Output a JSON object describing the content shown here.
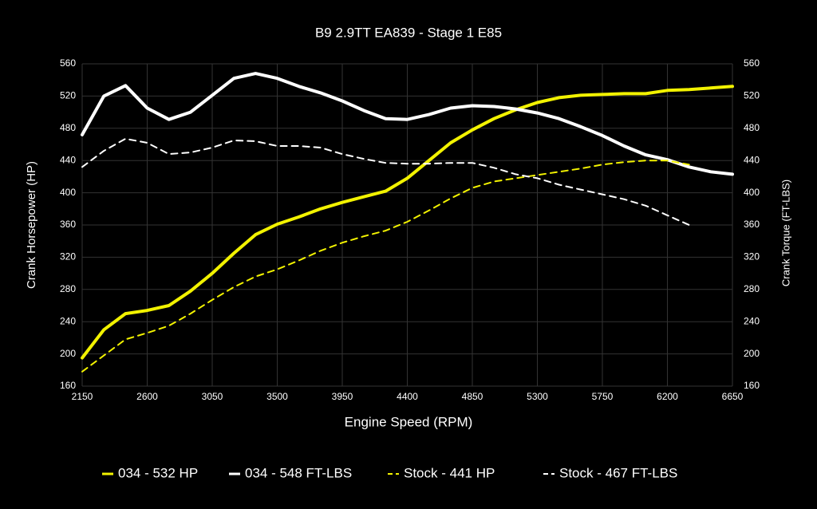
{
  "chart_data": {
    "type": "line",
    "title": "B9 2.9TT EA839 - Stage 1 E85",
    "x_label": "Engine Speed (RPM)",
    "y_label": "Crank Horsepower (HP)",
    "y2_label": "Crank Torque (FT-LBS)",
    "x": [
      2150,
      2300,
      2450,
      2600,
      2750,
      2900,
      3050,
      3200,
      3350,
      3500,
      3650,
      3800,
      3950,
      4100,
      4250,
      4400,
      4550,
      4700,
      4850,
      5000,
      5150,
      5300,
      5450,
      5600,
      5750,
      5900,
      6050,
      6200,
      6350,
      6500,
      6650
    ],
    "xlim": [
      2150,
      6650
    ],
    "xticks": [
      2150,
      2600,
      3050,
      3500,
      3950,
      4400,
      4850,
      5300,
      5750,
      6200,
      6650
    ],
    "ylim": [
      160,
      560
    ],
    "yticks": [
      160,
      200,
      240,
      280,
      320,
      360,
      400,
      440,
      480,
      520,
      560
    ],
    "y2lim": [
      160,
      560
    ],
    "y2ticks": [
      160,
      200,
      240,
      280,
      320,
      360,
      400,
      440,
      480,
      520,
      560
    ],
    "grid": true,
    "legend": "bottom",
    "series": [
      {
        "name": "034 - 532 HP",
        "color": "#f2f200",
        "dashed": false,
        "axis": "y",
        "values": [
          195,
          230,
          250,
          254,
          260,
          278,
          300,
          325,
          348,
          361,
          370,
          380,
          388,
          395,
          402,
          418,
          440,
          462,
          478,
          492,
          503,
          512,
          518,
          521,
          522,
          523,
          523,
          527,
          528,
          530,
          532
        ]
      },
      {
        "name": "034 - 548 FT-LBS",
        "color": "#ffffff",
        "dashed": false,
        "axis": "y2",
        "values": [
          472,
          520,
          533,
          505,
          491,
          500,
          521,
          542,
          548,
          542,
          532,
          524,
          514,
          502,
          492,
          491,
          497,
          505,
          508,
          507,
          504,
          499,
          492,
          482,
          471,
          458,
          447,
          441,
          432,
          426,
          423
        ]
      },
      {
        "name": "Stock - 441 HP",
        "color": "#f2f200",
        "dashed": true,
        "axis": "y",
        "values": [
          178,
          198,
          218,
          226,
          235,
          250,
          267,
          283,
          296,
          305,
          316,
          328,
          338,
          346,
          353,
          364,
          378,
          393,
          406,
          414,
          418,
          422,
          426,
          430,
          435,
          438,
          440,
          440,
          435,
          null,
          null
        ]
      },
      {
        "name": "Stock - 467 FT-LBS",
        "color": "#ffffff",
        "dashed": true,
        "axis": "y2",
        "values": [
          432,
          452,
          467,
          462,
          448,
          450,
          456,
          465,
          464,
          458,
          458,
          456,
          448,
          442,
          437,
          436,
          436,
          437,
          437,
          431,
          423,
          418,
          410,
          404,
          398,
          392,
          384,
          372,
          360,
          null,
          null
        ]
      }
    ]
  }
}
